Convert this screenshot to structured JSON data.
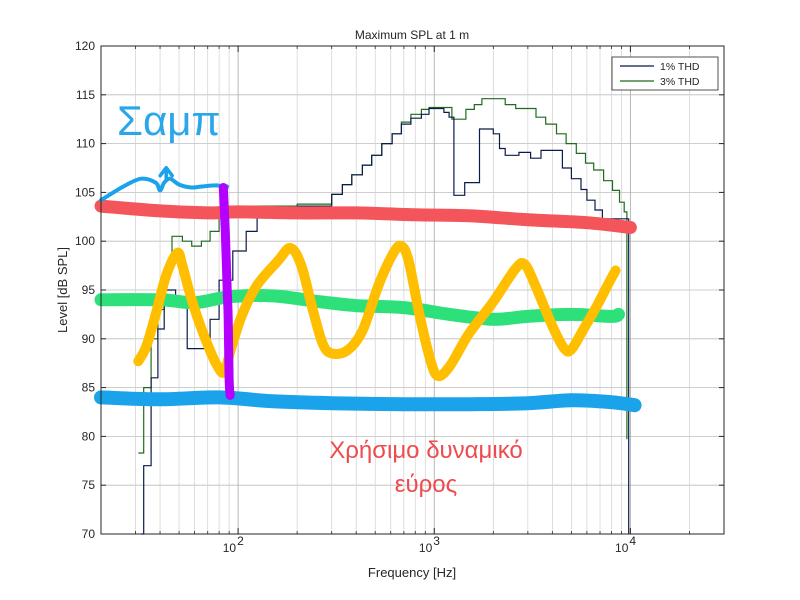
{
  "chart_data": {
    "type": "line",
    "title": "Maximum SPL at 1 m",
    "xlabel": "Frequency [Hz]",
    "ylabel": "Level [dB SPL]",
    "xscale": "log",
    "xlim": [
      20,
      30000
    ],
    "ylim": [
      70,
      120
    ],
    "yticks": [
      "70",
      "75",
      "80",
      "85",
      "90",
      "95",
      "100",
      "105",
      "110",
      "115",
      "120"
    ],
    "xticks": [
      {
        "value": 100,
        "base": "10",
        "exp": "2"
      },
      {
        "value": 1000,
        "base": "10",
        "exp": "3"
      },
      {
        "value": 10000,
        "base": "10",
        "exp": "4"
      }
    ],
    "grid": true,
    "legend_position": "top-right",
    "series": [
      {
        "name": "1% THD",
        "color": "#0b1b4a",
        "points": [
          [
            32,
            70
          ],
          [
            33,
            70
          ],
          [
            33,
            77
          ],
          [
            36,
            77
          ],
          [
            36,
            86
          ],
          [
            39,
            86
          ],
          [
            39,
            91
          ],
          [
            42,
            91
          ],
          [
            42,
            95
          ],
          [
            48,
            95
          ],
          [
            48,
            94
          ],
          [
            55,
            94
          ],
          [
            55,
            89
          ],
          [
            72,
            89
          ],
          [
            72,
            92
          ],
          [
            80,
            92
          ],
          [
            80,
            96
          ],
          [
            94,
            96
          ],
          [
            94,
            99
          ],
          [
            110,
            99
          ],
          [
            110,
            101
          ],
          [
            125,
            101
          ],
          [
            125,
            103.2
          ],
          [
            200,
            103.2
          ],
          [
            200,
            103.6
          ],
          [
            300,
            103.6
          ],
          [
            300,
            104.8
          ],
          [
            340,
            104.8
          ],
          [
            340,
            105.8
          ],
          [
            380,
            105.8
          ],
          [
            380,
            106.8
          ],
          [
            430,
            106.8
          ],
          [
            430,
            107.8
          ],
          [
            480,
            107.8
          ],
          [
            480,
            108.8
          ],
          [
            540,
            108.8
          ],
          [
            540,
            110
          ],
          [
            610,
            110
          ],
          [
            610,
            111
          ],
          [
            680,
            111
          ],
          [
            680,
            112
          ],
          [
            760,
            112
          ],
          [
            760,
            112.6
          ],
          [
            860,
            112.6
          ],
          [
            860,
            113
          ],
          [
            940,
            113
          ],
          [
            940,
            113.6
          ],
          [
            1120,
            113.6
          ],
          [
            1120,
            113.2
          ],
          [
            1190,
            113.2
          ],
          [
            1190,
            112.7
          ],
          [
            1260,
            112.7
          ],
          [
            1260,
            104.7
          ],
          [
            1430,
            104.7
          ],
          [
            1430,
            106
          ],
          [
            1700,
            106
          ],
          [
            1700,
            111.5
          ],
          [
            2000,
            111.5
          ],
          [
            2000,
            111
          ],
          [
            2150,
            111
          ],
          [
            2150,
            109.5
          ],
          [
            2300,
            109.5
          ],
          [
            2300,
            108.8
          ],
          [
            2700,
            108.8
          ],
          [
            2700,
            109.1
          ],
          [
            3100,
            109.1
          ],
          [
            3100,
            108.5
          ],
          [
            3500,
            108.5
          ],
          [
            3500,
            109.3
          ],
          [
            4500,
            109.3
          ],
          [
            4500,
            107.5
          ],
          [
            5000,
            107.5
          ],
          [
            5000,
            106.4
          ],
          [
            5600,
            106.4
          ],
          [
            5600,
            105.3
          ],
          [
            6000,
            105.3
          ],
          [
            6000,
            104.2
          ],
          [
            6600,
            104.2
          ],
          [
            6600,
            103.2
          ],
          [
            7200,
            103.2
          ],
          [
            7200,
            102.3
          ],
          [
            9800,
            102.3
          ],
          [
            9800,
            70
          ]
        ]
      },
      {
        "name": "3% THD",
        "color": "#1f6b1f",
        "points": [
          [
            31,
            78.3
          ],
          [
            33,
            78.3
          ],
          [
            33,
            85
          ],
          [
            36,
            85
          ],
          [
            36,
            90
          ],
          [
            39,
            90
          ],
          [
            39,
            93
          ],
          [
            42,
            93
          ],
          [
            42,
            97
          ],
          [
            46,
            97
          ],
          [
            46,
            100.5
          ],
          [
            52,
            100.5
          ],
          [
            52,
            100
          ],
          [
            58,
            100
          ],
          [
            58,
            99.5
          ],
          [
            65,
            99.5
          ],
          [
            65,
            100
          ],
          [
            72,
            100
          ],
          [
            72,
            101
          ],
          [
            80,
            101
          ],
          [
            80,
            102.5
          ],
          [
            94,
            102.5
          ],
          [
            94,
            103.2
          ],
          [
            112,
            103.2
          ],
          [
            112,
            103.6
          ],
          [
            200,
            103.6
          ],
          [
            200,
            103.8
          ],
          [
            300,
            103.8
          ],
          [
            300,
            104.8
          ],
          [
            340,
            104.8
          ],
          [
            340,
            105.8
          ],
          [
            380,
            105.8
          ],
          [
            380,
            106.8
          ],
          [
            430,
            106.8
          ],
          [
            430,
            107.8
          ],
          [
            480,
            107.8
          ],
          [
            480,
            108.8
          ],
          [
            540,
            108.8
          ],
          [
            540,
            110
          ],
          [
            610,
            110
          ],
          [
            610,
            111
          ],
          [
            680,
            111
          ],
          [
            680,
            112.2
          ],
          [
            760,
            112.2
          ],
          [
            760,
            113
          ],
          [
            860,
            113
          ],
          [
            860,
            113.5
          ],
          [
            940,
            113.5
          ],
          [
            940,
            113.7
          ],
          [
            1230,
            113.7
          ],
          [
            1230,
            112.5
          ],
          [
            1450,
            112.5
          ],
          [
            1450,
            113.5
          ],
          [
            1600,
            113.5
          ],
          [
            1600,
            114
          ],
          [
            1750,
            114
          ],
          [
            1750,
            114.6
          ],
          [
            2300,
            114.6
          ],
          [
            2300,
            114
          ],
          [
            2600,
            114
          ],
          [
            2600,
            113.6
          ],
          [
            3300,
            113.6
          ],
          [
            3300,
            112.7
          ],
          [
            3700,
            112.7
          ],
          [
            3700,
            112
          ],
          [
            4200,
            112
          ],
          [
            4200,
            111
          ],
          [
            4700,
            111
          ],
          [
            4700,
            110
          ],
          [
            5300,
            110
          ],
          [
            5300,
            109
          ],
          [
            5900,
            109
          ],
          [
            5900,
            108
          ],
          [
            6500,
            108
          ],
          [
            6500,
            107.3
          ],
          [
            7300,
            107.3
          ],
          [
            7300,
            106.2
          ],
          [
            8100,
            106.2
          ],
          [
            8100,
            105.2
          ],
          [
            8800,
            105.2
          ],
          [
            8800,
            104
          ],
          [
            9300,
            104
          ],
          [
            9300,
            103
          ],
          [
            9600,
            103
          ],
          [
            9600,
            79.7
          ]
        ]
      }
    ]
  },
  "annotations": {
    "label_top": "Σαμπ",
    "label_bottom_line1": "Χρήσιμο δυναμικό",
    "label_bottom_line2": "εύρος",
    "colors": {
      "blue": "#1aa3ea",
      "red": "#f4555b",
      "green": "#2ee07a",
      "yellow": "#ffbf00",
      "magenta": "#b400ff",
      "label_blue": "#2aa6ea",
      "label_red": "#ef4a4e"
    },
    "strokes": {
      "red_line": [
        [
          20,
          103.6
        ],
        [
          40,
          103.1
        ],
        [
          70,
          102.9
        ],
        [
          100,
          103
        ],
        [
          200,
          102.9
        ],
        [
          400,
          102.9
        ],
        [
          800,
          102.7
        ],
        [
          1500,
          102.6
        ],
        [
          3000,
          102.2
        ],
        [
          6000,
          101.9
        ],
        [
          10000,
          101.4
        ]
      ],
      "green_line": [
        [
          20,
          94
        ],
        [
          40,
          94
        ],
        [
          60,
          93.7
        ],
        [
          90,
          94.3
        ],
        [
          150,
          94.4
        ],
        [
          260,
          93.8
        ],
        [
          400,
          93.4
        ],
        [
          700,
          93.2
        ],
        [
          1200,
          92.5
        ],
        [
          2000,
          92
        ],
        [
          3000,
          92.3
        ],
        [
          5000,
          92.5
        ],
        [
          8000,
          92.3
        ],
        [
          8700,
          92.5
        ]
      ],
      "blue_line": [
        [
          20,
          84
        ],
        [
          40,
          83.8
        ],
        [
          80,
          84
        ],
        [
          150,
          83.6
        ],
        [
          300,
          83.4
        ],
        [
          700,
          83.3
        ],
        [
          1500,
          83.3
        ],
        [
          3000,
          83.4
        ],
        [
          5000,
          83.7
        ],
        [
          8000,
          83.5
        ],
        [
          10500,
          83.2
        ]
      ],
      "blue_squiggle": [
        [
          20,
          104.2
        ],
        [
          26,
          105.6
        ],
        [
          32,
          106.4
        ],
        [
          38,
          106
        ],
        [
          40,
          105.2
        ],
        [
          42,
          106
        ],
        [
          45,
          106.4
        ],
        [
          50,
          105.8
        ],
        [
          58,
          105.5
        ],
        [
          65,
          105.6
        ],
        [
          80,
          105.7
        ],
        [
          85,
          105.2
        ],
        [
          88,
          105.6
        ]
      ],
      "yellow_zigzag": [
        [
          31,
          87.7
        ],
        [
          34,
          89.2
        ],
        [
          38,
          92.5
        ],
        [
          43,
          96.5
        ],
        [
          49,
          98.8
        ],
        [
          52,
          97.5
        ],
        [
          58,
          94
        ],
        [
          68,
          90
        ],
        [
          78,
          87.3
        ],
        [
          85,
          86.6
        ],
        [
          92,
          89
        ],
        [
          105,
          92.5
        ],
        [
          125,
          95.5
        ],
        [
          160,
          98
        ],
        [
          185,
          99.3
        ],
        [
          210,
          97.5
        ],
        [
          240,
          93
        ],
        [
          270,
          89.5
        ],
        [
          300,
          88.5
        ],
        [
          360,
          88.8
        ],
        [
          430,
          90.8
        ],
        [
          520,
          95.5
        ],
        [
          620,
          98.8
        ],
        [
          680,
          99.5
        ],
        [
          740,
          98
        ],
        [
          840,
          92.5
        ],
        [
          950,
          88
        ],
        [
          1040,
          86.2
        ],
        [
          1200,
          87.2
        ],
        [
          1500,
          90.5
        ],
        [
          2000,
          93.8
        ],
        [
          2600,
          97.2
        ],
        [
          2900,
          97.6
        ],
        [
          3300,
          95.3
        ],
        [
          4000,
          91.3
        ],
        [
          4600,
          89
        ],
        [
          5000,
          88.9
        ],
        [
          5700,
          90.8
        ],
        [
          6800,
          93.5
        ],
        [
          7800,
          95.8
        ],
        [
          8400,
          97
        ]
      ],
      "magenta_line": [
        [
          84,
          105.5
        ],
        [
          86,
          101
        ],
        [
          88,
          95
        ],
        [
          89,
          92
        ],
        [
          90,
          86
        ],
        [
          91,
          84.2
        ]
      ]
    }
  }
}
